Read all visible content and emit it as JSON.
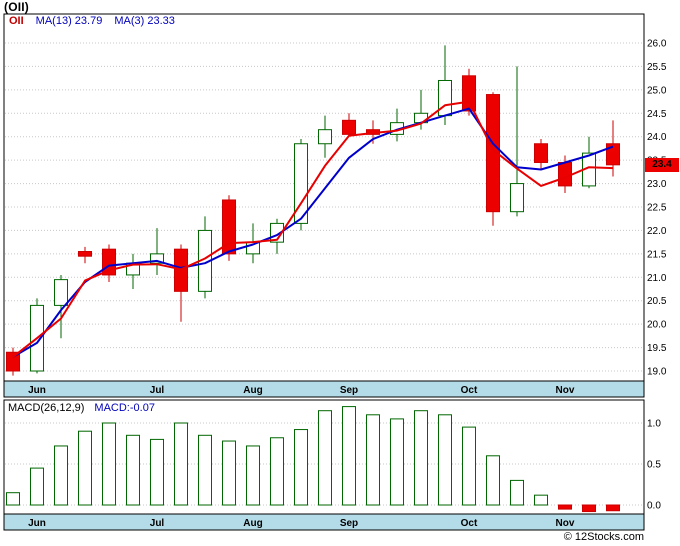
{
  "title": "(OII)",
  "legend": {
    "symbol": "OII",
    "ma13": "MA(13) 23.79",
    "ma3": "MA(3) 23.33"
  },
  "macd_legend": {
    "name": "MACD(26,12,9)",
    "value": "MACD:-0.07"
  },
  "price_tag": "23.4",
  "footer": "© 12Stocks.com",
  "colors": {
    "up": "#006600",
    "up_fill": "#ffffff",
    "down": "#cc0000",
    "down_fill": "#ec0000",
    "ma13_line": "#0000cc",
    "ma3_line": "#e80000",
    "band": "#b4dce8",
    "grid": "#c8c8c8",
    "frame": "#000000"
  },
  "chart_data": [
    {
      "type": "candlestick",
      "symbol": "OII",
      "timeframe": "weekly, Jun-Nov",
      "ma13_value": 23.79,
      "ma3_value": 23.33,
      "last_price": 23.4,
      "ylim": [
        18.8,
        26.6
      ],
      "yticks": [
        26.0,
        25.5,
        25.0,
        24.5,
        24.0,
        23.5,
        23.0,
        22.5,
        22.0,
        21.5,
        21.0,
        20.5,
        20.0,
        19.5,
        19.0
      ],
      "months": [
        {
          "label": "Jun",
          "i": 1
        },
        {
          "label": "Jul",
          "i": 6
        },
        {
          "label": "Aug",
          "i": 10
        },
        {
          "label": "Sep",
          "i": 14
        },
        {
          "label": "Oct",
          "i": 19
        },
        {
          "label": "Nov",
          "i": 23
        }
      ],
      "ohlc": [
        [
          19.4,
          19.5,
          18.9,
          19.0
        ],
        [
          19.0,
          20.55,
          18.95,
          20.4
        ],
        [
          20.4,
          21.05,
          19.7,
          20.95
        ],
        [
          21.55,
          21.65,
          21.3,
          21.45
        ],
        [
          21.6,
          21.7,
          20.9,
          21.05
        ],
        [
          21.05,
          21.5,
          20.75,
          21.3
        ],
        [
          21.3,
          22.05,
          21.05,
          21.5
        ],
        [
          21.6,
          21.7,
          20.05,
          20.7
        ],
        [
          20.7,
          22.3,
          20.55,
          22.0
        ],
        [
          22.65,
          22.75,
          21.35,
          21.5
        ],
        [
          21.5,
          22.15,
          21.3,
          21.75
        ],
        [
          21.75,
          22.25,
          21.5,
          22.15
        ],
        [
          22.15,
          23.95,
          22.0,
          23.85
        ],
        [
          23.85,
          24.45,
          23.55,
          24.15
        ],
        [
          24.35,
          24.5,
          24.0,
          24.05
        ],
        [
          24.15,
          24.35,
          23.85,
          24.05
        ],
        [
          24.05,
          24.6,
          23.9,
          24.3
        ],
        [
          24.3,
          25.0,
          24.15,
          24.5
        ],
        [
          24.45,
          25.95,
          24.25,
          25.2
        ],
        [
          25.3,
          25.45,
          24.45,
          24.55
        ],
        [
          24.9,
          24.95,
          22.1,
          22.4
        ],
        [
          22.4,
          25.5,
          22.3,
          23.0
        ],
        [
          23.85,
          23.95,
          23.3,
          23.45
        ],
        [
          23.45,
          23.6,
          22.8,
          22.95
        ],
        [
          22.95,
          24.0,
          22.9,
          23.65
        ],
        [
          23.85,
          24.35,
          23.15,
          23.4
        ]
      ],
      "ma13_values": [
        19.3,
        19.6,
        20.3,
        20.9,
        21.25,
        21.3,
        21.35,
        21.2,
        21.3,
        21.55,
        21.7,
        21.9,
        22.25,
        22.9,
        23.55,
        23.95,
        24.15,
        24.3,
        24.45,
        24.6,
        23.85,
        23.35,
        23.3,
        23.45,
        23.6,
        23.79
      ],
      "ma3_values": [
        19.3,
        19.7,
        20.12,
        20.93,
        21.15,
        21.27,
        21.28,
        21.17,
        21.4,
        21.73,
        21.75,
        21.8,
        22.58,
        23.38,
        24.02,
        24.08,
        24.13,
        24.28,
        24.67,
        24.75,
        23.72,
        23.32,
        22.95,
        23.13,
        23.35,
        23.33
      ]
    },
    {
      "type": "bar",
      "title": "MACD(26,12,9)",
      "last": -0.07,
      "ylim": [
        -0.1,
        1.28
      ],
      "yticks": [
        1.0,
        0.5,
        0.0
      ],
      "months": [
        {
          "label": "Jun",
          "i": 1
        },
        {
          "label": "Jul",
          "i": 6
        },
        {
          "label": "Aug",
          "i": 10
        },
        {
          "label": "Sep",
          "i": 14
        },
        {
          "label": "Oct",
          "i": 19
        },
        {
          "label": "Nov",
          "i": 23
        }
      ],
      "values": [
        0.15,
        0.45,
        0.72,
        0.9,
        1.0,
        0.85,
        0.8,
        1.0,
        0.85,
        0.78,
        0.72,
        0.82,
        0.92,
        1.15,
        1.2,
        1.1,
        1.05,
        1.15,
        1.1,
        0.95,
        0.6,
        0.3,
        0.12,
        -0.05,
        -0.08,
        -0.07
      ]
    }
  ]
}
